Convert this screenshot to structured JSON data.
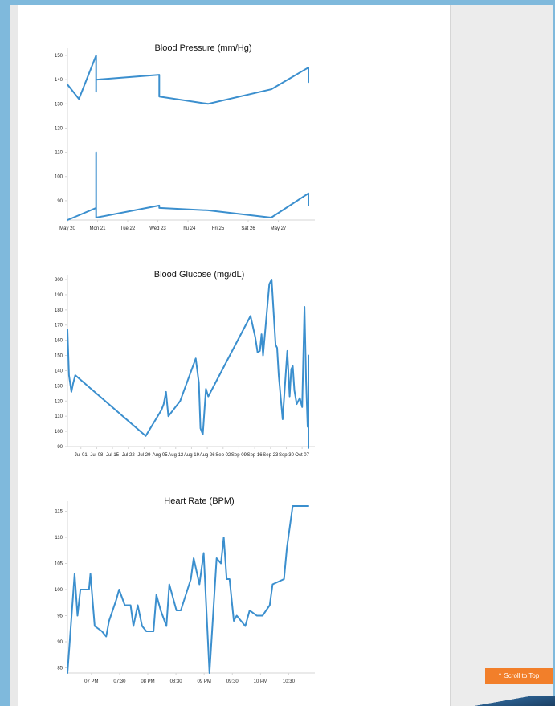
{
  "scroll_to_top": {
    "label": "Scroll to Top",
    "icon": "chevron-up-icon"
  },
  "colors": {
    "line": "#3b8fce",
    "accent": "#f27f2a",
    "background": "#7fb9dc"
  },
  "chart_data": [
    {
      "type": "line",
      "title": "Blood Pressure (mm/Hg)",
      "xlabel": "",
      "ylabel": "",
      "x_ticks": [
        "May 20",
        "Mon 21",
        "Tue 22",
        "Wed 23",
        "Thu 24",
        "Fri 25",
        "Sat 26",
        "May 27"
      ],
      "y_ticks": [
        90,
        100,
        110,
        120,
        130,
        140,
        150
      ],
      "ylim": [
        82,
        151
      ],
      "xlim": [
        0,
        8.4
      ],
      "series": [
        {
          "x": [
            0,
            0.4,
            1,
            1,
            1,
            3.2,
            3.2,
            4.9,
            7.1,
            8.4,
            8.4
          ],
          "y": [
            138,
            132,
            150,
            135,
            140,
            142,
            133,
            130,
            136,
            145,
            139
          ]
        },
        {
          "x": [
            0,
            0.4,
            1,
            1,
            1,
            3.2,
            3.2,
            4.9,
            7.1,
            8.4,
            8.4
          ],
          "y": [
            82,
            84,
            87,
            110,
            83,
            88,
            87,
            86,
            83,
            93,
            88
          ]
        }
      ]
    },
    {
      "type": "line",
      "title": "Blood Glucose (mg/dL)",
      "xlabel": "",
      "ylabel": "",
      "x_ticks": [
        "Jul 01",
        "Jul 08",
        "Jul 15",
        "Jul 22",
        "Jul 29",
        "Aug 05",
        "Aug 12",
        "Aug 19",
        "Aug 26",
        "Sep 02",
        "Sep 09",
        "Sep 16",
        "Sep 23",
        "Sep 30",
        "Oct 07"
      ],
      "y_ticks": [
        90,
        100,
        110,
        120,
        130,
        140,
        150,
        160,
        170,
        180,
        190,
        200
      ],
      "ylim": [
        90,
        200
      ],
      "xlim": [
        -1.3,
        14.1
      ],
      "series": [
        {
          "y": [
            167,
            137,
            126,
            131,
            137,
            97,
            114,
            118,
            126,
            110,
            120,
            148,
            132,
            102,
            98,
            128,
            123,
            176,
            162,
            152,
            153,
            164,
            150,
            197,
            200,
            157,
            155,
            137,
            108,
            153,
            123,
            141,
            143,
            127,
            118,
            122,
            116,
            182,
            133,
            103,
            103,
            113,
            150,
            128,
            141,
            121,
            89
          ],
          "x": [
            -1.3,
            -1.2,
            -1.05,
            -0.95,
            -0.8,
            3.7,
            4.7,
            4.85,
            5.0,
            5.15,
            5.9,
            6.9,
            7.1,
            7.2,
            7.35,
            7.55,
            7.7,
            10.4,
            10.7,
            10.85,
            11.0,
            11.1,
            11.2,
            11.6,
            11.75,
            12.0,
            12.1,
            12.2,
            12.45,
            12.75,
            12.9,
            13.0,
            13.1,
            13.2,
            13.35,
            13.55,
            13.7,
            13.85,
            13.95,
            14.05,
            14.1,
            14.1,
            14.1,
            14.1,
            14.1,
            14.1,
            14.1
          ]
        }
      ]
    },
    {
      "type": "line",
      "title": "Heart Rate (BPM)",
      "xlabel": "",
      "ylabel": "",
      "x_ticks": [
        "07 PM",
        "07:30",
        "08 PM",
        "08:30",
        "09 PM",
        "09:30",
        "10 PM",
        "10:30"
      ],
      "y_ticks": [
        85,
        90,
        95,
        100,
        105,
        110,
        115
      ],
      "ylim": [
        84,
        116
      ],
      "xlim": [
        0,
        8.4
      ],
      "series": [
        {
          "x": [
            0,
            0.25,
            0.35,
            0.45,
            0.75,
            0.8,
            0.95,
            1.2,
            1.35,
            1.45,
            1.7,
            1.8,
            2.0,
            2.2,
            2.3,
            2.45,
            2.6,
            2.75,
            3.0,
            3.1,
            3.25,
            3.45,
            3.55,
            3.8,
            3.95,
            4.3,
            4.4,
            4.6,
            4.75,
            4.95,
            5.2,
            5.35,
            5.45,
            5.55,
            5.65,
            5.8,
            5.9,
            6.2,
            6.35,
            6.6,
            6.8,
            7.05,
            7.15,
            7.55,
            7.65,
            7.85,
            8.35,
            8.4
          ],
          "y": [
            84,
            103,
            95,
            100,
            100,
            103,
            93,
            92,
            91,
            94,
            98,
            100,
            97,
            97,
            93,
            97,
            93,
            92,
            92,
            99,
            96,
            93,
            101,
            96,
            96,
            102,
            106,
            101,
            107,
            84,
            106,
            105,
            110,
            102,
            102,
            94,
            95,
            93,
            96,
            95,
            95,
            97,
            101,
            102,
            108,
            116,
            116,
            116
          ]
        }
      ]
    }
  ]
}
